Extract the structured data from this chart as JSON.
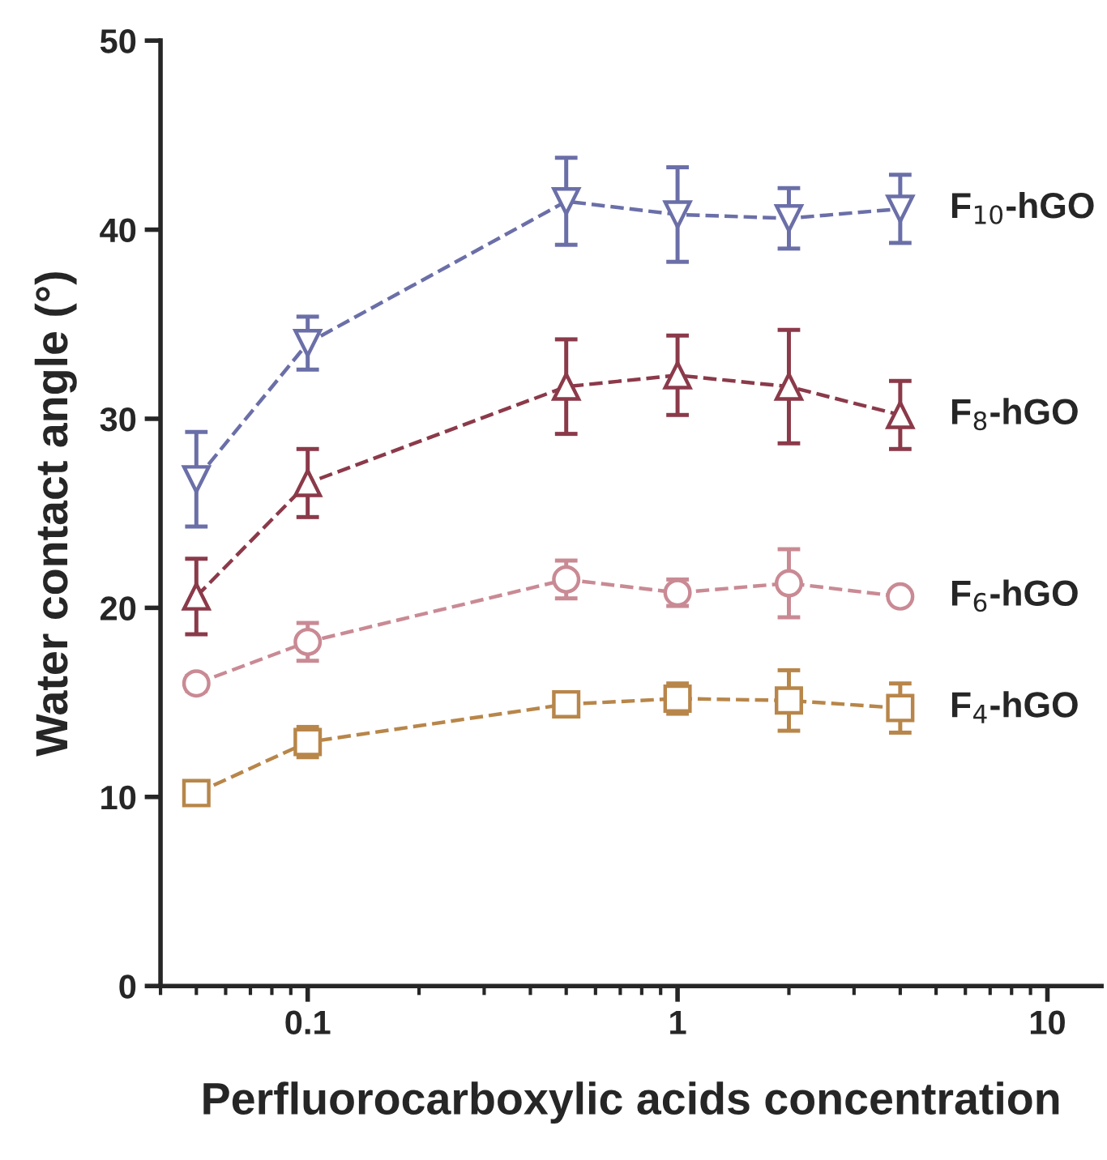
{
  "chart_data": {
    "type": "line",
    "xlabel": "Perfluorocarboxylic acids concentration",
    "ylabel": "Water contact angle (°)",
    "x": [
      0.05,
      0.1,
      0.5,
      1,
      2,
      4
    ],
    "series": [
      {
        "name": "F$_{10}$-hGO",
        "color": "#6b6fa8",
        "marker": "triangle_down",
        "values": [
          26.8,
          34.0,
          41.5,
          40.8,
          40.6,
          41.1
        ],
        "errors": [
          2.5,
          1.4,
          2.3,
          2.5,
          1.6,
          1.8
        ]
      },
      {
        "name": "F$_{8}$-hGO",
        "color": "#8b3a4a",
        "marker": "triangle",
        "values": [
          20.6,
          26.6,
          31.7,
          32.3,
          31.7,
          30.2
        ],
        "errors": [
          2.0,
          1.8,
          2.5,
          2.1,
          3.0,
          1.8
        ]
      },
      {
        "name": "F$_{6}$-hGO",
        "color": "#c98a94",
        "marker": "circle",
        "values": [
          16.0,
          18.2,
          21.5,
          20.8,
          21.3,
          20.6
        ],
        "errors": [
          0.4,
          1.0,
          1.0,
          0.7,
          1.8,
          null
        ]
      },
      {
        "name": "F$_{4}$-hGO",
        "color": "#b8864a",
        "marker": "square",
        "values": [
          10.2,
          12.9,
          14.9,
          15.2,
          15.1,
          14.7
        ],
        "errors": [
          null,
          0.8,
          null,
          0.8,
          1.6,
          1.3
        ]
      }
    ],
    "log": "x",
    "line_style": "dashed",
    "grid": false,
    "legend": false,
    "xlim": [
      0.04,
      14
    ],
    "xticks": [
      0.1,
      1,
      10
    ],
    "ylim": [
      0,
      50
    ],
    "yticks": [
      0,
      10,
      20,
      30,
      40,
      50
    ]
  }
}
